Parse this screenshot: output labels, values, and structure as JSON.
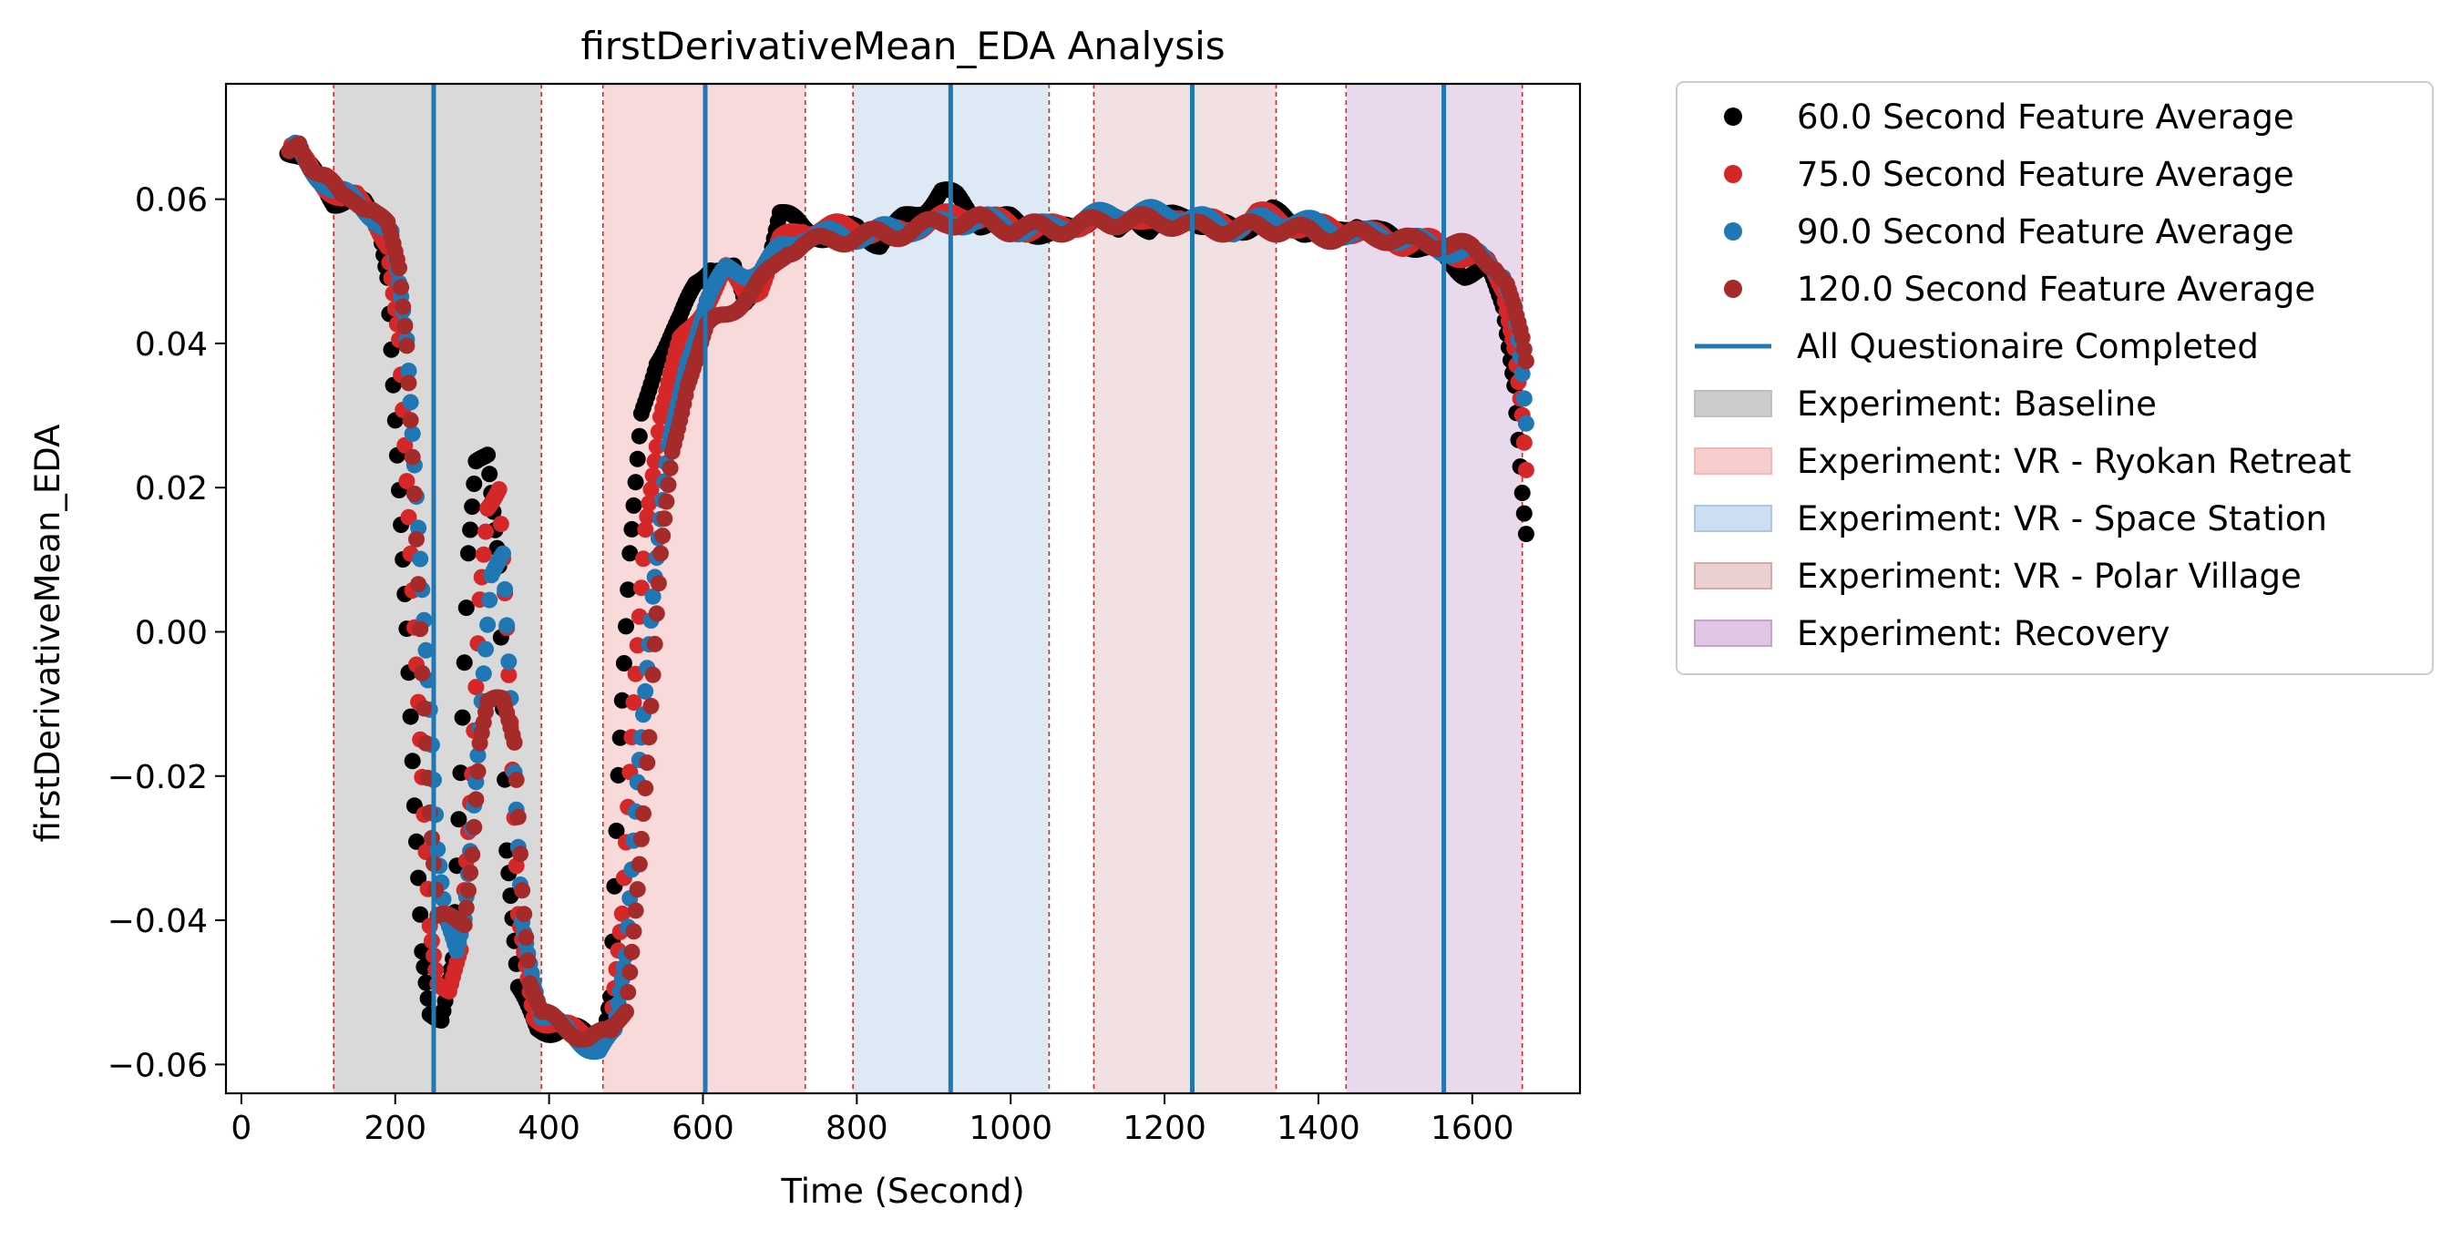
{
  "chart_data": {
    "type": "scatter",
    "title": "firstDerivativeMean_EDA Analysis",
    "xlabel": "Time (Second)",
    "ylabel": "firstDerivativeMean_EDA",
    "xlim": [
      -20,
      1740
    ],
    "ylim": [
      -0.064,
      0.076
    ],
    "x_ticks": [
      0,
      200,
      400,
      600,
      800,
      1000,
      1200,
      1400,
      1600
    ],
    "y_ticks": [
      -0.06,
      -0.04,
      -0.02,
      0.0,
      0.02,
      0.04,
      0.06
    ],
    "y_tick_labels": [
      "−0.06",
      "−0.04",
      "−0.02",
      "0.00",
      "0.02",
      "0.04",
      "0.06"
    ],
    "grid": false,
    "legend_position": "outside-right",
    "series": [
      {
        "name": "60.0 Second Feature Average",
        "color": "#000000",
        "points": [
          [
            60,
            0.067
          ],
          [
            80,
            0.065
          ],
          [
            100,
            0.063
          ],
          [
            120,
            0.06
          ],
          [
            140,
            0.06
          ],
          [
            160,
            0.059
          ],
          [
            180,
            0.056
          ],
          [
            190,
            0.05
          ],
          [
            200,
            0.03
          ],
          [
            215,
            0.0
          ],
          [
            225,
            -0.025
          ],
          [
            235,
            -0.045
          ],
          [
            245,
            -0.053
          ],
          [
            260,
            -0.053
          ],
          [
            275,
            -0.045
          ],
          [
            285,
            -0.02
          ],
          [
            295,
            0.01
          ],
          [
            305,
            0.023
          ],
          [
            320,
            0.025
          ],
          [
            335,
            0.01
          ],
          [
            345,
            -0.03
          ],
          [
            360,
            -0.05
          ],
          [
            385,
            -0.055
          ],
          [
            420,
            -0.055
          ],
          [
            450,
            -0.056
          ],
          [
            470,
            -0.056
          ],
          [
            480,
            -0.05
          ],
          [
            490,
            -0.02
          ],
          [
            505,
            0.01
          ],
          [
            520,
            0.03
          ],
          [
            540,
            0.038
          ],
          [
            570,
            0.043
          ],
          [
            590,
            0.048
          ],
          [
            610,
            0.051
          ],
          [
            640,
            0.05
          ],
          [
            655,
            0.045
          ],
          [
            680,
            0.05
          ],
          [
            700,
            0.058
          ],
          [
            730,
            0.056
          ],
          [
            760,
            0.055
          ],
          [
            800,
            0.056
          ],
          [
            830,
            0.054
          ],
          [
            860,
            0.057
          ],
          [
            890,
            0.059
          ],
          [
            910,
            0.061
          ],
          [
            930,
            0.06
          ],
          [
            960,
            0.057
          ],
          [
            1000,
            0.057
          ],
          [
            1050,
            0.055
          ],
          [
            1080,
            0.056
          ],
          [
            1110,
            0.058
          ],
          [
            1140,
            0.055
          ],
          [
            1160,
            0.058
          ],
          [
            1180,
            0.056
          ],
          [
            1200,
            0.057
          ],
          [
            1230,
            0.058
          ],
          [
            1260,
            0.056
          ],
          [
            1300,
            0.056
          ],
          [
            1340,
            0.058
          ],
          [
            1380,
            0.056
          ],
          [
            1420,
            0.055
          ],
          [
            1450,
            0.057
          ],
          [
            1480,
            0.055
          ],
          [
            1520,
            0.054
          ],
          [
            1560,
            0.052
          ],
          [
            1590,
            0.05
          ],
          [
            1620,
            0.05
          ],
          [
            1640,
            0.045
          ],
          [
            1655,
            0.035
          ],
          [
            1665,
            0.02
          ],
          [
            1670,
            0.014
          ]
        ]
      },
      {
        "name": "75.0 Second Feature Average",
        "color": "#d62728",
        "points": [
          [
            65,
            0.067
          ],
          [
            85,
            0.065
          ],
          [
            110,
            0.062
          ],
          [
            130,
            0.06
          ],
          [
            150,
            0.06
          ],
          [
            170,
            0.058
          ],
          [
            190,
            0.054
          ],
          [
            205,
            0.04
          ],
          [
            220,
            0.01
          ],
          [
            235,
            -0.02
          ],
          [
            245,
            -0.04
          ],
          [
            255,
            -0.048
          ],
          [
            270,
            -0.05
          ],
          [
            285,
            -0.045
          ],
          [
            300,
            -0.02
          ],
          [
            310,
            0.005
          ],
          [
            320,
            0.018
          ],
          [
            335,
            0.02
          ],
          [
            345,
            0.0
          ],
          [
            360,
            -0.04
          ],
          [
            380,
            -0.053
          ],
          [
            420,
            -0.055
          ],
          [
            460,
            -0.056
          ],
          [
            480,
            -0.055
          ],
          [
            495,
            -0.04
          ],
          [
            510,
            -0.01
          ],
          [
            525,
            0.015
          ],
          [
            545,
            0.03
          ],
          [
            570,
            0.04
          ],
          [
            600,
            0.045
          ],
          [
            630,
            0.05
          ],
          [
            655,
            0.047
          ],
          [
            675,
            0.048
          ],
          [
            700,
            0.054
          ],
          [
            730,
            0.056
          ],
          [
            760,
            0.056
          ],
          [
            800,
            0.056
          ],
          [
            840,
            0.055
          ],
          [
            870,
            0.056
          ],
          [
            900,
            0.057
          ],
          [
            940,
            0.058
          ],
          [
            980,
            0.057
          ],
          [
            1020,
            0.056
          ],
          [
            1060,
            0.056
          ],
          [
            1100,
            0.057
          ],
          [
            1130,
            0.057
          ],
          [
            1160,
            0.058
          ],
          [
            1190,
            0.056
          ],
          [
            1220,
            0.058
          ],
          [
            1250,
            0.057
          ],
          [
            1290,
            0.056
          ],
          [
            1320,
            0.058
          ],
          [
            1350,
            0.057
          ],
          [
            1390,
            0.056
          ],
          [
            1430,
            0.056
          ],
          [
            1470,
            0.055
          ],
          [
            1510,
            0.054
          ],
          [
            1550,
            0.054
          ],
          [
            1590,
            0.052
          ],
          [
            1620,
            0.051
          ],
          [
            1640,
            0.048
          ],
          [
            1655,
            0.04
          ],
          [
            1665,
            0.03
          ],
          [
            1670,
            0.022
          ]
        ]
      },
      {
        "name": "90.0 Second Feature Average",
        "color": "#1f77b4",
        "points": [
          [
            70,
            0.067
          ],
          [
            95,
            0.064
          ],
          [
            120,
            0.061
          ],
          [
            145,
            0.06
          ],
          [
            170,
            0.058
          ],
          [
            195,
            0.055
          ],
          [
            215,
            0.04
          ],
          [
            230,
            0.015
          ],
          [
            245,
            -0.01
          ],
          [
            255,
            -0.03
          ],
          [
            265,
            -0.04
          ],
          [
            280,
            -0.045
          ],
          [
            290,
            -0.04
          ],
          [
            305,
            -0.02
          ],
          [
            315,
            -0.005
          ],
          [
            325,
            0.008
          ],
          [
            340,
            0.01
          ],
          [
            350,
            -0.01
          ],
          [
            365,
            -0.04
          ],
          [
            390,
            -0.053
          ],
          [
            430,
            -0.056
          ],
          [
            465,
            -0.058
          ],
          [
            485,
            -0.056
          ],
          [
            500,
            -0.045
          ],
          [
            515,
            -0.02
          ],
          [
            535,
            0.005
          ],
          [
            555,
            0.025
          ],
          [
            580,
            0.038
          ],
          [
            605,
            0.046
          ],
          [
            630,
            0.05
          ],
          [
            655,
            0.05
          ],
          [
            675,
            0.05
          ],
          [
            700,
            0.053
          ],
          [
            730,
            0.055
          ],
          [
            770,
            0.055
          ],
          [
            810,
            0.055
          ],
          [
            850,
            0.056
          ],
          [
            890,
            0.056
          ],
          [
            930,
            0.057
          ],
          [
            970,
            0.057
          ],
          [
            1010,
            0.056
          ],
          [
            1050,
            0.056
          ],
          [
            1090,
            0.057
          ],
          [
            1130,
            0.058
          ],
          [
            1170,
            0.058
          ],
          [
            1210,
            0.058
          ],
          [
            1250,
            0.057
          ],
          [
            1290,
            0.056
          ],
          [
            1330,
            0.057
          ],
          [
            1370,
            0.057
          ],
          [
            1410,
            0.056
          ],
          [
            1450,
            0.055
          ],
          [
            1490,
            0.055
          ],
          [
            1530,
            0.054
          ],
          [
            1570,
            0.053
          ],
          [
            1610,
            0.052
          ],
          [
            1640,
            0.05
          ],
          [
            1655,
            0.045
          ],
          [
            1665,
            0.035
          ],
          [
            1670,
            0.028
          ]
        ]
      },
      {
        "name": "120.0 Second Feature Average",
        "color": "#a52a2a",
        "points": [
          [
            62,
            0.066
          ],
          [
            75,
            0.068
          ],
          [
            90,
            0.065
          ],
          [
            110,
            0.063
          ],
          [
            130,
            0.06
          ],
          [
            150,
            0.06
          ],
          [
            170,
            0.059
          ],
          [
            190,
            0.056
          ],
          [
            205,
            0.05
          ],
          [
            215,
            0.04
          ],
          [
            225,
            0.02
          ],
          [
            235,
            -0.005
          ],
          [
            245,
            -0.025
          ],
          [
            255,
            -0.04
          ],
          [
            270,
            -0.04
          ],
          [
            290,
            -0.04
          ],
          [
            300,
            -0.03
          ],
          [
            310,
            -0.015
          ],
          [
            320,
            -0.01
          ],
          [
            340,
            -0.01
          ],
          [
            355,
            -0.015
          ],
          [
            365,
            -0.035
          ],
          [
            375,
            -0.048
          ],
          [
            390,
            -0.053
          ],
          [
            420,
            -0.055
          ],
          [
            450,
            -0.056
          ],
          [
            480,
            -0.056
          ],
          [
            500,
            -0.052
          ],
          [
            515,
            -0.035
          ],
          [
            530,
            -0.015
          ],
          [
            545,
            0.01
          ],
          [
            560,
            0.025
          ],
          [
            580,
            0.035
          ],
          [
            605,
            0.042
          ],
          [
            630,
            0.044
          ],
          [
            650,
            0.046
          ],
          [
            670,
            0.048
          ],
          [
            690,
            0.05
          ],
          [
            710,
            0.053
          ],
          [
            730,
            0.054
          ],
          [
            760,
            0.054
          ],
          [
            800,
            0.055
          ],
          [
            840,
            0.055
          ],
          [
            880,
            0.056
          ],
          [
            920,
            0.057
          ],
          [
            960,
            0.057
          ],
          [
            1000,
            0.056
          ],
          [
            1040,
            0.056
          ],
          [
            1080,
            0.056
          ],
          [
            1120,
            0.057
          ],
          [
            1160,
            0.057
          ],
          [
            1200,
            0.057
          ],
          [
            1240,
            0.056
          ],
          [
            1280,
            0.056
          ],
          [
            1320,
            0.056
          ],
          [
            1360,
            0.056
          ],
          [
            1400,
            0.055
          ],
          [
            1440,
            0.055
          ],
          [
            1480,
            0.055
          ],
          [
            1520,
            0.054
          ],
          [
            1560,
            0.054
          ],
          [
            1600,
            0.053
          ],
          [
            1630,
            0.051
          ],
          [
            1645,
            0.048
          ],
          [
            1655,
            0.044
          ],
          [
            1665,
            0.04
          ],
          [
            1670,
            0.037
          ]
        ]
      }
    ],
    "questionnaire_lines": {
      "name": "All Questionaire Completed",
      "color": "#1f77b4",
      "x": [
        250,
        603,
        922,
        1236,
        1563
      ]
    },
    "boundary_lines": {
      "color": "#d62728",
      "x": [
        120,
        390,
        470,
        733,
        795,
        1050,
        1108,
        1345,
        1436,
        1665
      ]
    },
    "experiments": [
      {
        "name": "Experiment: Baseline",
        "color": "#bfbfbf",
        "opacity": 0.6,
        "x0": 120,
        "x1": 390
      },
      {
        "name": "Experiment: VR - Ryokan Retreat",
        "color": "#f4b6b8",
        "opacity": 0.5,
        "x0": 470,
        "x1": 733
      },
      {
        "name": "Experiment: VR - Space Station",
        "color": "#aac8e6",
        "opacity": 0.4,
        "x0": 795,
        "x1": 1050
      },
      {
        "name": "Experiment: VR - Polar Village",
        "color": "#d8a9ab",
        "opacity": 0.35,
        "x0": 1108,
        "x1": 1345
      },
      {
        "name": "Experiment: Recovery",
        "color": "#c8a0d2",
        "opacity": 0.4,
        "x0": 1436,
        "x1": 1665
      }
    ]
  }
}
